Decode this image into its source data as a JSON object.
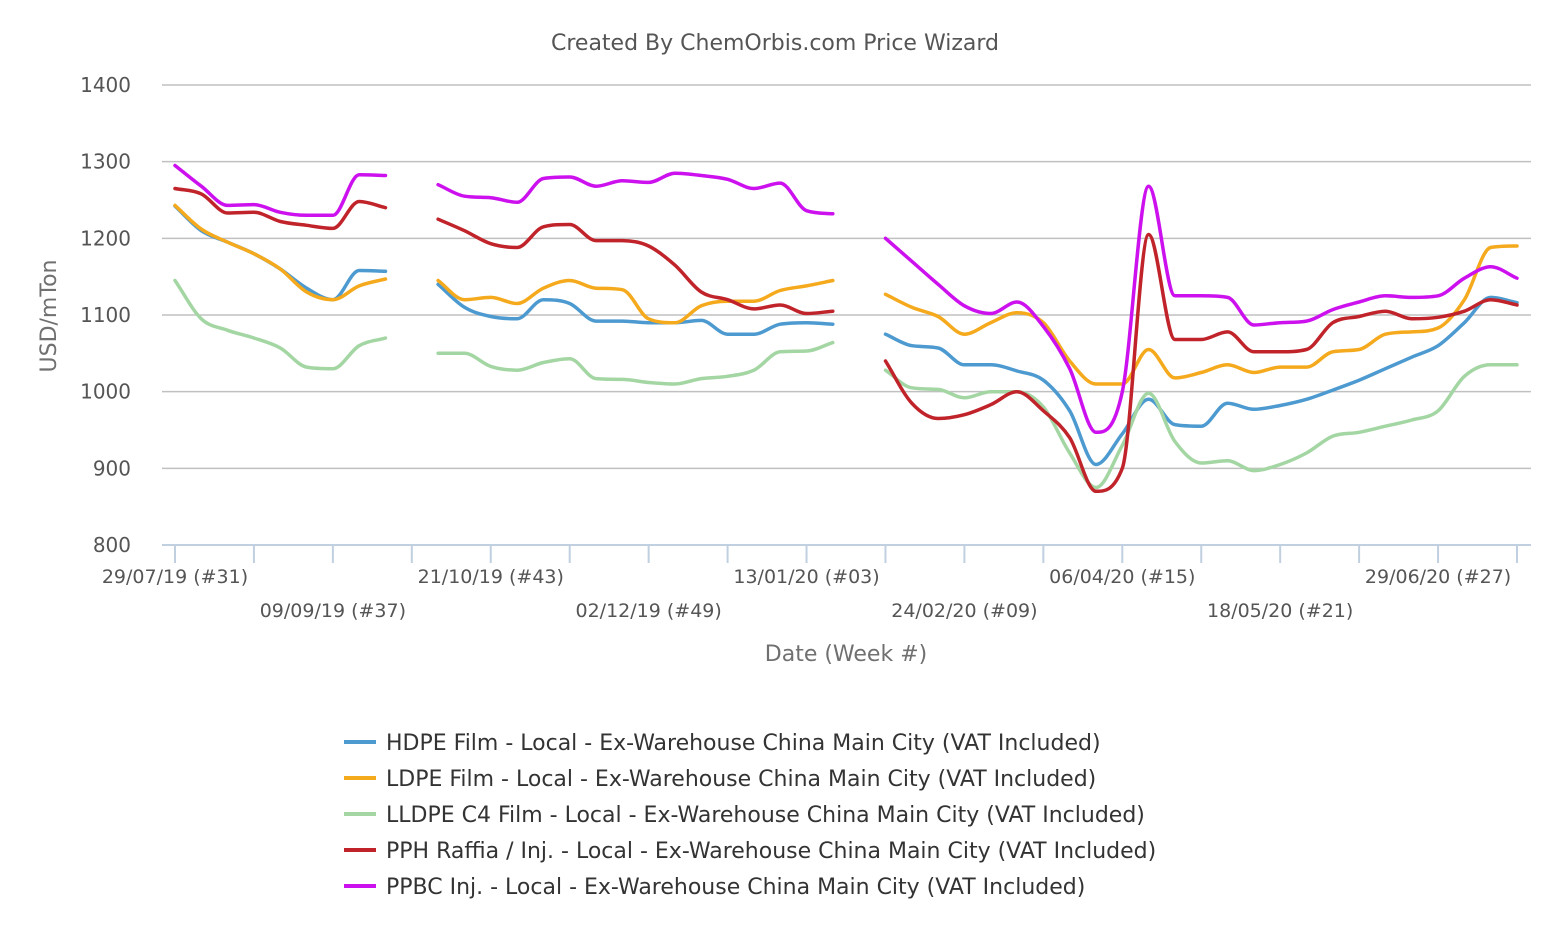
{
  "chart_data": {
    "type": "line",
    "title": "Created By ChemOrbis.com Price Wizard",
    "xlabel": "Date (Week #)",
    "ylabel": "USD/mTon",
    "ylim": [
      800,
      1400
    ],
    "yticks": [
      800,
      900,
      1000,
      1100,
      1200,
      1300,
      1400
    ],
    "grid": true,
    "legend_position": "bottom",
    "x_tick_labels": [
      "29/07/19 (#31)",
      "09/09/19 (#37)",
      "21/10/19 (#43)",
      "02/12/19 (#49)",
      "13/01/20 (#03)",
      "24/02/20 (#09)",
      "06/04/20 (#15)",
      "18/05/20 (#21)",
      "29/06/20 (#27)"
    ],
    "x_tick_week_index": [
      0,
      6,
      12,
      18,
      24,
      30,
      36,
      42,
      48
    ],
    "x_range": [
      0,
      51
    ],
    "series": [
      {
        "name": "HDPE Film - Local - Ex-Warehouse China Main City (VAT Included)",
        "color": "#4d9ad0",
        "segments": [
          [
            [
              0,
              1242
            ],
            [
              1,
              1210
            ],
            [
              2,
              1195
            ],
            [
              3,
              1180
            ],
            [
              4,
              1160
            ],
            [
              5,
              1135
            ],
            [
              6,
              1120
            ],
            [
              7,
              1158
            ],
            [
              8,
              1157
            ]
          ],
          [
            [
              10,
              1140
            ],
            [
              11,
              1110
            ],
            [
              12,
              1098
            ],
            [
              13,
              1095
            ],
            [
              14,
              1120
            ],
            [
              15,
              1115
            ],
            [
              16,
              1092
            ],
            [
              17,
              1092
            ],
            [
              18,
              1090
            ],
            [
              19,
              1090
            ],
            [
              20,
              1093
            ],
            [
              21,
              1075
            ],
            [
              22,
              1075
            ],
            [
              23,
              1088
            ],
            [
              24,
              1090
            ],
            [
              25,
              1088
            ]
          ],
          [
            [
              27,
              1075
            ],
            [
              28,
              1060
            ],
            [
              29,
              1057
            ],
            [
              30,
              1035
            ],
            [
              31,
              1035
            ],
            [
              32,
              1027
            ],
            [
              33,
              1015
            ],
            [
              34,
              975
            ],
            [
              35,
              905
            ],
            [
              36,
              945
            ],
            [
              37,
              990
            ],
            [
              38,
              957
            ],
            [
              39,
              955
            ],
            [
              40,
              985
            ],
            [
              41,
              977
            ],
            [
              42,
              982
            ],
            [
              43,
              990
            ],
            [
              44,
              1002
            ],
            [
              45,
              1015
            ],
            [
              46,
              1030
            ],
            [
              47,
              1045
            ],
            [
              48,
              1060
            ],
            [
              49,
              1090
            ],
            [
              50,
              1123
            ],
            [
              51,
              1116
            ]
          ]
        ]
      },
      {
        "name": "LDPE Film - Local - Ex-Warehouse China Main City (VAT Included)",
        "color": "#f5a91c",
        "segments": [
          [
            [
              0,
              1243
            ],
            [
              1,
              1212
            ],
            [
              2,
              1195
            ],
            [
              3,
              1180
            ],
            [
              4,
              1160
            ],
            [
              5,
              1130
            ],
            [
              6,
              1120
            ],
            [
              7,
              1138
            ],
            [
              8,
              1147
            ]
          ],
          [
            [
              10,
              1145
            ],
            [
              11,
              1120
            ],
            [
              12,
              1123
            ],
            [
              13,
              1115
            ],
            [
              14,
              1135
            ],
            [
              15,
              1145
            ],
            [
              16,
              1135
            ],
            [
              17,
              1133
            ],
            [
              18,
              1095
            ],
            [
              19,
              1090
            ],
            [
              20,
              1112
            ],
            [
              21,
              1118
            ],
            [
              22,
              1118
            ],
            [
              23,
              1132
            ],
            [
              24,
              1138
            ],
            [
              25,
              1145
            ]
          ],
          [
            [
              27,
              1127
            ],
            [
              28,
              1110
            ],
            [
              29,
              1098
            ],
            [
              30,
              1075
            ],
            [
              31,
              1090
            ],
            [
              32,
              1103
            ],
            [
              33,
              1090
            ],
            [
              34,
              1040
            ],
            [
              35,
              1010
            ],
            [
              36,
              1010
            ],
            [
              37,
              1055
            ],
            [
              38,
              1018
            ],
            [
              39,
              1025
            ],
            [
              40,
              1035
            ],
            [
              41,
              1025
            ],
            [
              42,
              1032
            ],
            [
              43,
              1032
            ],
            [
              44,
              1052
            ],
            [
              45,
              1055
            ],
            [
              46,
              1075
            ],
            [
              47,
              1078
            ],
            [
              48,
              1083
            ],
            [
              49,
              1120
            ],
            [
              50,
              1188
            ],
            [
              51,
              1190
            ]
          ]
        ]
      },
      {
        "name": "LLDPE C4 Film - Local - Ex-Warehouse China Main City (VAT Included)",
        "color": "#a3d6a3",
        "segments": [
          [
            [
              0,
              1145
            ],
            [
              1,
              1095
            ],
            [
              2,
              1080
            ],
            [
              3,
              1070
            ],
            [
              4,
              1057
            ],
            [
              5,
              1032
            ],
            [
              6,
              1030
            ],
            [
              7,
              1060
            ],
            [
              8,
              1070
            ]
          ],
          [
            [
              10,
              1050
            ],
            [
              11,
              1050
            ],
            [
              12,
              1033
            ],
            [
              13,
              1028
            ],
            [
              14,
              1038
            ],
            [
              15,
              1043
            ],
            [
              16,
              1017
            ],
            [
              17,
              1016
            ],
            [
              18,
              1012
            ],
            [
              19,
              1010
            ],
            [
              20,
              1017
            ],
            [
              21,
              1020
            ],
            [
              22,
              1028
            ],
            [
              23,
              1052
            ],
            [
              24,
              1053
            ],
            [
              25,
              1064
            ]
          ],
          [
            [
              27,
              1028
            ],
            [
              28,
              1005
            ],
            [
              29,
              1003
            ],
            [
              30,
              992
            ],
            [
              31,
              1000
            ],
            [
              32,
              1000
            ],
            [
              33,
              980
            ],
            [
              34,
              920
            ],
            [
              35,
              875
            ],
            [
              36,
              930
            ],
            [
              37,
              998
            ],
            [
              38,
              935
            ],
            [
              39,
              907
            ],
            [
              40,
              910
            ],
            [
              41,
              897
            ],
            [
              42,
              905
            ],
            [
              43,
              920
            ],
            [
              44,
              942
            ],
            [
              45,
              947
            ],
            [
              46,
              955
            ],
            [
              47,
              963
            ],
            [
              48,
              975
            ],
            [
              49,
              1020
            ],
            [
              50,
              1035
            ],
            [
              51,
              1035
            ]
          ]
        ]
      },
      {
        "name": "PPH Raffia / Inj. - Local - Ex-Warehouse China Main City (VAT Included)",
        "color": "#c0242a",
        "segments": [
          [
            [
              0,
              1265
            ],
            [
              1,
              1258
            ],
            [
              2,
              1233
            ],
            [
              3,
              1234
            ],
            [
              4,
              1222
            ],
            [
              5,
              1217
            ],
            [
              6,
              1213
            ],
            [
              7,
              1248
            ],
            [
              8,
              1240
            ]
          ],
          [
            [
              10,
              1225
            ],
            [
              11,
              1210
            ],
            [
              12,
              1193
            ],
            [
              13,
              1188
            ],
            [
              14,
              1215
            ],
            [
              15,
              1218
            ],
            [
              16,
              1197
            ],
            [
              17,
              1197
            ],
            [
              18,
              1190
            ],
            [
              19,
              1165
            ],
            [
              20,
              1130
            ],
            [
              21,
              1120
            ],
            [
              22,
              1108
            ],
            [
              23,
              1113
            ],
            [
              24,
              1102
            ],
            [
              25,
              1105
            ]
          ],
          [
            [
              27,
              1040
            ],
            [
              28,
              985
            ],
            [
              29,
              965
            ],
            [
              30,
              970
            ],
            [
              31,
              983
            ],
            [
              32,
              1000
            ],
            [
              33,
              975
            ],
            [
              34,
              940
            ],
            [
              35,
              870
            ],
            [
              36,
              900
            ],
            [
              37,
              1205
            ],
            [
              38,
              1068
            ],
            [
              39,
              1068
            ],
            [
              40,
              1078
            ],
            [
              41,
              1052
            ],
            [
              42,
              1052
            ],
            [
              43,
              1055
            ],
            [
              44,
              1090
            ],
            [
              45,
              1098
            ],
            [
              46,
              1105
            ],
            [
              47,
              1095
            ],
            [
              48,
              1097
            ],
            [
              49,
              1105
            ],
            [
              50,
              1120
            ],
            [
              51,
              1113
            ]
          ]
        ]
      },
      {
        "name": "PPBC Inj. - Local - Ex-Warehouse China Main City (VAT Included)",
        "color": "#cc11ee",
        "segments": [
          [
            [
              0,
              1295
            ],
            [
              1,
              1268
            ],
            [
              2,
              1243
            ],
            [
              3,
              1244
            ],
            [
              4,
              1234
            ],
            [
              5,
              1230
            ],
            [
              6,
              1230
            ],
            [
              7,
              1283
            ],
            [
              8,
              1282
            ]
          ],
          [
            [
              10,
              1270
            ],
            [
              11,
              1255
            ],
            [
              12,
              1253
            ],
            [
              13,
              1247
            ],
            [
              14,
              1278
            ],
            [
              15,
              1280
            ],
            [
              16,
              1268
            ],
            [
              17,
              1275
            ],
            [
              18,
              1273
            ],
            [
              19,
              1285
            ],
            [
              20,
              1282
            ],
            [
              21,
              1277
            ],
            [
              22,
              1265
            ],
            [
              23,
              1272
            ],
            [
              24,
              1236
            ],
            [
              25,
              1232
            ]
          ],
          [
            [
              27,
              1200
            ],
            [
              28,
              1170
            ],
            [
              29,
              1140
            ],
            [
              30,
              1112
            ],
            [
              31,
              1102
            ],
            [
              32,
              1117
            ],
            [
              33,
              1085
            ],
            [
              34,
              1030
            ],
            [
              35,
              947
            ],
            [
              36,
              1000
            ],
            [
              37,
              1268
            ],
            [
              38,
              1125
            ],
            [
              39,
              1125
            ],
            [
              40,
              1123
            ],
            [
              41,
              1087
            ],
            [
              42,
              1090
            ],
            [
              43,
              1092
            ],
            [
              44,
              1107
            ],
            [
              45,
              1117
            ],
            [
              46,
              1125
            ],
            [
              47,
              1123
            ],
            [
              48,
              1125
            ],
            [
              49,
              1148
            ],
            [
              50,
              1163
            ],
            [
              51,
              1148
            ]
          ]
        ]
      }
    ]
  }
}
